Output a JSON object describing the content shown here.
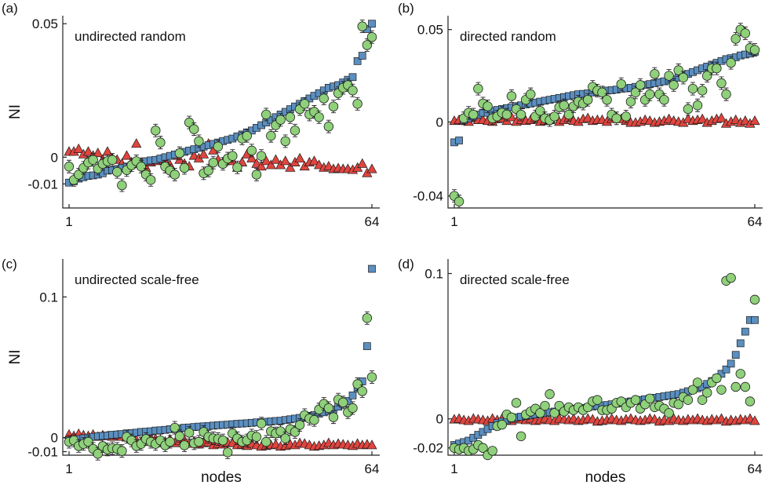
{
  "figure": {
    "xlabel": "nodes",
    "ylabel": "NI"
  },
  "colors": {
    "square_fill": "#5b8fc0",
    "circle_fill": "#8fd07a",
    "triangle_fill": "#e0453f",
    "marker_edge": "#1a1a1a",
    "errorbar": "#222222"
  },
  "chart_data": [
    {
      "panel": "(a)",
      "type": "scatter",
      "title": "undirected random",
      "ylabel": "NI",
      "xlabel": "",
      "xlim": [
        1,
        64
      ],
      "ylim": [
        -0.019,
        0.053
      ],
      "xticks": [
        "1",
        "64"
      ],
      "yticks": [
        {
          "value": 0.05,
          "label": "0.05"
        },
        {
          "value": 0,
          "label": "0"
        },
        {
          "value": -0.01,
          "label": "-0.01"
        }
      ],
      "grid": false,
      "series": [
        {
          "marker": "square",
          "errorbars": true,
          "y": [
            -0.0095,
            -0.009,
            -0.008,
            -0.0075,
            -0.007,
            -0.0068,
            -0.0065,
            -0.006,
            -0.005,
            -0.0048,
            -0.0045,
            -0.004,
            -0.0035,
            -0.003,
            -0.0025,
            -0.002,
            -0.0015,
            -0.0012,
            -0.001,
            -0.0005,
            0,
            0.0005,
            0.001,
            0.0015,
            0.002,
            0.0025,
            0.003,
            0.0035,
            0.004,
            0.0045,
            0.005,
            0.0055,
            0.006,
            0.0065,
            0.007,
            0.0078,
            0.0085,
            0.0093,
            0.01,
            0.011,
            0.012,
            0.013,
            0.014,
            0.015,
            0.016,
            0.017,
            0.018,
            0.019,
            0.02,
            0.021,
            0.022,
            0.023,
            0.024,
            0.025,
            0.026,
            0.0265,
            0.027,
            0.028,
            0.029,
            0.03,
            0.036,
            0.038,
            0.048,
            0.05
          ]
        },
        {
          "marker": "circle",
          "errorbars": true,
          "y": [
            -0.0035,
            -0.0085,
            -0.0065,
            -0.004,
            -0.002,
            -0.001,
            -0.0043,
            -0.0025,
            -0.0015,
            -0.001,
            -0.0055,
            -0.0105,
            -0.0048,
            -0.003,
            -0.0015,
            -0.0035,
            -0.0065,
            -0.0085,
            0.01,
            0.0055,
            -0.0035,
            -0.005,
            -0.0065,
            0.0015,
            -0.004,
            0.013,
            0.0105,
            0.006,
            -0.006,
            -0.005,
            -0.002,
            0.004,
            -0.0025,
            -0.0005,
            0.0005,
            -0.0038,
            0.007,
            0.008,
            0.0025,
            -0.0065,
            0.0005,
            0.016,
            0.008,
            0.012,
            0.014,
            0.006,
            0.015,
            0.01,
            0.018,
            0.02,
            0.016,
            0.017,
            0.015,
            0.022,
            0.0115,
            0.019,
            0.024,
            0.026,
            0.027,
            0.025,
            0.02,
            0.049,
            0.042,
            0.045
          ]
        },
        {
          "marker": "triangle",
          "errorbars": false,
          "y": [
            0.002,
            0.002,
            0.003,
            0.001,
            0.002,
            0.0005,
            0.0015,
            -0.001,
            0.002,
            -0.0005,
            -0.001,
            -0.0025,
            0.0005,
            -0.002,
            0.005,
            -0.002,
            -0.004,
            -0.002,
            -0.0015,
            -0.001,
            -0.0015,
            -0.003,
            0.0005,
            -0.001,
            -0.0025,
            -0.0035,
            0.0005,
            -0.0005,
            0.001,
            0.005,
            0.0025,
            -0.001,
            -0.002,
            -0.001,
            -0.0015,
            -0.004,
            -0.002,
            0.001,
            -0.0005,
            -0.0025,
            -0.0035,
            -0.0015,
            -0.003,
            -0.001,
            -0.003,
            -0.0015,
            -0.004,
            -0.002,
            -0.0005,
            -0.0035,
            -0.002,
            -0.0015,
            -0.003,
            -0.004,
            -0.0035,
            -0.0045,
            -0.0042,
            -0.0045,
            -0.0045,
            -0.0048,
            -0.004,
            -0.0025,
            -0.006,
            -0.0045
          ]
        }
      ]
    },
    {
      "panel": "(b)",
      "type": "scatter",
      "title": "directed random",
      "ylabel": "",
      "xlabel": "",
      "xlim": [
        1,
        64
      ],
      "ylim": [
        -0.0465,
        0.0575
      ],
      "xticks": [
        "1",
        "64"
      ],
      "yticks": [
        {
          "value": 0.05,
          "label": "0.05"
        },
        {
          "value": 0,
          "label": "0"
        },
        {
          "value": -0.04,
          "label": "-0.04"
        }
      ],
      "grid": false,
      "series": [
        {
          "marker": "square",
          "errorbars": true,
          "y": [
            -0.011,
            -0.01,
            0.001,
            0.002,
            0.003,
            0.004,
            0.005,
            0.005,
            0.006,
            0.0065,
            0.007,
            0.0075,
            0.008,
            0.0085,
            0.009,
            0.0095,
            0.01,
            0.0105,
            0.011,
            0.0115,
            0.012,
            0.0125,
            0.013,
            0.0135,
            0.014,
            0.0145,
            0.015,
            0.0152,
            0.0155,
            0.016,
            0.0162,
            0.0165,
            0.017,
            0.0172,
            0.0175,
            0.018,
            0.0182,
            0.0185,
            0.019,
            0.0195,
            0.02,
            0.0205,
            0.021,
            0.0215,
            0.022,
            0.0225,
            0.023,
            0.024,
            0.025,
            0.026,
            0.027,
            0.028,
            0.029,
            0.03,
            0.031,
            0.032,
            0.033,
            0.034,
            0.0345,
            0.035,
            0.036,
            0.0365,
            0.037,
            0.038
          ]
        },
        {
          "marker": "circle",
          "errorbars": true,
          "y": [
            -0.04,
            -0.043,
            0.002,
            0.005,
            0.004,
            0.018,
            0.01,
            0.0085,
            0.002,
            0.003,
            0.005,
            0.004,
            0.014,
            0.007,
            0.004,
            0.012,
            0.015,
            0.003,
            0.006,
            0.002,
            0.001,
            0.003,
            0.008,
            0.009,
            0.004,
            0.0085,
            0.011,
            0.01,
            0.012,
            0.019,
            0.017,
            0.016,
            0.012,
            0.004,
            0.002,
            0.0205,
            0.003,
            0.011,
            0.016,
            0.02,
            0.012,
            0.015,
            0.026,
            0.015,
            0.012,
            0.025,
            0.02,
            0.028,
            0.024,
            0.007,
            0.018,
            0.009,
            0.017,
            0.025,
            0.029,
            0.029,
            0.021,
            0.015,
            0.032,
            0.045,
            0.05,
            0.048,
            0.04,
            0.039
          ]
        },
        {
          "marker": "triangle",
          "errorbars": false,
          "y": [
            0.0005,
            0.001,
            0.0005,
            0,
            0.002,
            0.001,
            0.001,
            0.0005,
            0,
            0.0015,
            0.002,
            0.0005,
            0.0025,
            0,
            0.001,
            0.0005,
            0.001,
            0.002,
            0,
            0.0005,
            0.001,
            0.0025,
            0,
            0.001,
            0.002,
            0.0005,
            0,
            0.0015,
            0.002,
            0.0005,
            0.001,
            0.001,
            0,
            0.0015,
            0.0025,
            0.0015,
            0.0005,
            -0.0005,
            -0.0005,
            0,
            0.001,
            0.0005,
            -0.0005,
            0,
            0.0005,
            0.0015,
            0.0005,
            0,
            -0.0005,
            0.0015,
            0.0005,
            0.001,
            0.0015,
            -0.0005,
            0.0005,
            0.0015,
            0.002,
            -0.001,
            0,
            0.001,
            -0.0005,
            0.0005,
            -0.001,
            0.0005
          ]
        }
      ]
    },
    {
      "panel": "(c)",
      "type": "scatter",
      "title": "undirected scale-free",
      "ylabel": "NI",
      "xlabel": "nodes",
      "xlim": [
        1,
        64
      ],
      "ylim": [
        -0.0125,
        0.127
      ],
      "xticks": [
        "1",
        "64"
      ],
      "yticks": [
        {
          "value": 0.1,
          "label": "0.1"
        },
        {
          "value": 0,
          "label": "0"
        },
        {
          "value": -0.01,
          "label": "-0.01"
        }
      ],
      "grid": false,
      "series": [
        {
          "marker": "square",
          "errorbars": true,
          "y": [
            -0.002,
            -0.0015,
            -0.001,
            -0.0005,
            0,
            0.0005,
            0.001,
            0.0012,
            0.0015,
            0.002,
            0.0022,
            0.0025,
            0.003,
            0.0032,
            0.0035,
            0.004,
            0.0042,
            0.0045,
            0.005,
            0.0052,
            0.0055,
            0.006,
            0.0062,
            0.0065,
            0.007,
            0.0072,
            0.0075,
            0.0078,
            0.008,
            0.0082,
            0.0085,
            0.0088,
            0.009,
            0.0092,
            0.0095,
            0.0098,
            0.01,
            0.0102,
            0.0105,
            0.0108,
            0.011,
            0.0112,
            0.0115,
            0.0118,
            0.012,
            0.0125,
            0.013,
            0.0135,
            0.014,
            0.0145,
            0.015,
            0.016,
            0.017,
            0.018,
            0.019,
            0.02,
            0.022,
            0.024,
            0.026,
            0.03,
            0.035,
            0.04,
            0.065,
            0.12
          ]
        },
        {
          "marker": "circle",
          "errorbars": true,
          "y": [
            -0.003,
            -0.002,
            -0.006,
            -0.0045,
            -0.003,
            -0.008,
            -0.0115,
            -0.006,
            -0.0085,
            -0.0075,
            -0.008,
            -0.0095,
            0.0005,
            -0.002,
            -0.006,
            -0.0045,
            -0.001,
            -0.003,
            -0.0045,
            -0.002,
            -0.0055,
            -0.003,
            0.007,
            0.001,
            -0.0055,
            0.0035,
            -0.004,
            -0.003,
            0.004,
            0.0005,
            -0.0005,
            -0.001,
            -0.002,
            -0.0105,
            0.003,
            -0.0005,
            -0.003,
            -0.002,
            0.0015,
            0.0005,
            0.01,
            -0.003,
            0.0045,
            0.003,
            0.0045,
            -0.0005,
            0.006,
            0.004,
            0.009,
            0.016,
            0.0135,
            0.0125,
            0.02,
            0.024,
            0.021,
            0.0145,
            0.027,
            0.025,
            0.018,
            0.021,
            0.038,
            0.033,
            0.085,
            0.043
          ]
        },
        {
          "marker": "triangle",
          "errorbars": false,
          "y": [
            0.002,
            0.001,
            0.0025,
            0.0015,
            0.001,
            0.002,
            0.0005,
            0.0015,
            0.001,
            0.0005,
            0.0015,
            0.0005,
            0,
            0.0005,
            -0.002,
            -0.003,
            -0.0015,
            -0.0005,
            -0.001,
            -0.002,
            -0.003,
            -0.0015,
            -0.004,
            -0.0025,
            -0.002,
            -0.0045,
            -0.003,
            -0.005,
            -0.004,
            -0.0035,
            -0.0055,
            -0.0045,
            -0.005,
            -0.0035,
            -0.004,
            -0.0055,
            -0.005,
            -0.006,
            -0.0045,
            -0.0055,
            -0.0065,
            -0.006,
            -0.0055,
            -0.005,
            -0.0065,
            -0.006,
            -0.005,
            -0.0055,
            -0.004,
            -0.0045,
            -0.0055,
            -0.0065,
            -0.006,
            -0.0055,
            -0.004,
            -0.0055,
            -0.0045,
            -0.005,
            -0.0055,
            -0.006,
            -0.0045,
            -0.0055,
            -0.005,
            -0.0055
          ]
        }
      ]
    },
    {
      "panel": "(d)",
      "type": "scatter",
      "title": "directed scale-free",
      "ylabel": "",
      "xlabel": "nodes",
      "xlim": [
        1,
        64
      ],
      "ylim": [
        -0.025,
        0.11
      ],
      "xticks": [
        "1",
        "64"
      ],
      "yticks": [
        {
          "value": 0.1,
          "label": "0.1"
        },
        {
          "value": 0,
          "label": "0"
        },
        {
          "value": -0.02,
          "label": "-0.02"
        }
      ],
      "grid": false,
      "series": [
        {
          "marker": "square",
          "errorbars": false,
          "y": [
            -0.018,
            -0.017,
            -0.016,
            -0.015,
            -0.013,
            -0.011,
            -0.009,
            -0.007,
            -0.005,
            -0.003,
            -0.002,
            -0.001,
            0,
            0.001,
            0.0015,
            0.002,
            0.0025,
            0.003,
            0.0035,
            0.004,
            0.0045,
            0.005,
            0.0055,
            0.006,
            0.0065,
            0.007,
            0.0072,
            0.0075,
            0.008,
            0.0085,
            0.009,
            0.0092,
            0.0095,
            0.01,
            0.0105,
            0.011,
            0.0115,
            0.012,
            0.0125,
            0.013,
            0.0135,
            0.014,
            0.0145,
            0.015,
            0.0155,
            0.016,
            0.0165,
            0.017,
            0.018,
            0.019,
            0.02,
            0.021,
            0.022,
            0.024,
            0.026,
            0.028,
            0.031,
            0.034,
            0.038,
            0.044,
            0.052,
            0.06,
            0.068,
            0.068
          ]
        },
        {
          "marker": "circle",
          "errorbars": false,
          "y": [
            -0.02,
            -0.021,
            -0.02,
            -0.022,
            -0.021,
            -0.018,
            -0.02,
            -0.025,
            -0.022,
            -0.005,
            -0.004,
            0.003,
            0.001,
            0.011,
            -0.012,
            0.003,
            0.005,
            0.007,
            0.004,
            0.009,
            0.017,
            0.004,
            0.009,
            0.005,
            0.008,
            0.006,
            0.008,
            0.006,
            0.008,
            0.012,
            0.013,
            0.006,
            0.006,
            0.007,
            0.011,
            0.012,
            0.008,
            0.011,
            0.013,
            0.007,
            0.01,
            0.014,
            0.008,
            0.009,
            0.007,
            0.004,
            0.011,
            0.01,
            0.015,
            0.013,
            0.02,
            0.025,
            0.013,
            0.018,
            0.025,
            0.028,
            0.02,
            0.095,
            0.097,
            0.022,
            0.031,
            0.022,
            0.012,
            0.082
          ]
        },
        {
          "marker": "triangle",
          "errorbars": false,
          "y": [
            -0.0005,
            0,
            -0.001,
            -0.0015,
            0,
            -0.0005,
            -0.001,
            -0.0015,
            0,
            -0.001,
            0,
            -0.001,
            -0.0015,
            0,
            -0.0005,
            -0.001,
            0,
            -0.0015,
            -0.001,
            0,
            -0.001,
            -0.0015,
            0,
            -0.0005,
            -0.001,
            0,
            -0.0015,
            -0.001,
            0,
            -0.0005,
            -0.002,
            -0.0015,
            -0.001,
            0,
            -0.001,
            -0.0015,
            -0.0005,
            0,
            -0.001,
            -0.0015,
            -0.001,
            0,
            -0.0005,
            -0.002,
            -0.001,
            -0.0015,
            0,
            -0.001,
            -0.0015,
            -0.0005,
            -0.001,
            0,
            -0.001,
            -0.0015,
            -0.0005,
            -0.001,
            0,
            -0.002,
            -0.001,
            -0.0015,
            -0.0005,
            -0.001,
            0,
            -0.0015
          ]
        }
      ]
    }
  ]
}
